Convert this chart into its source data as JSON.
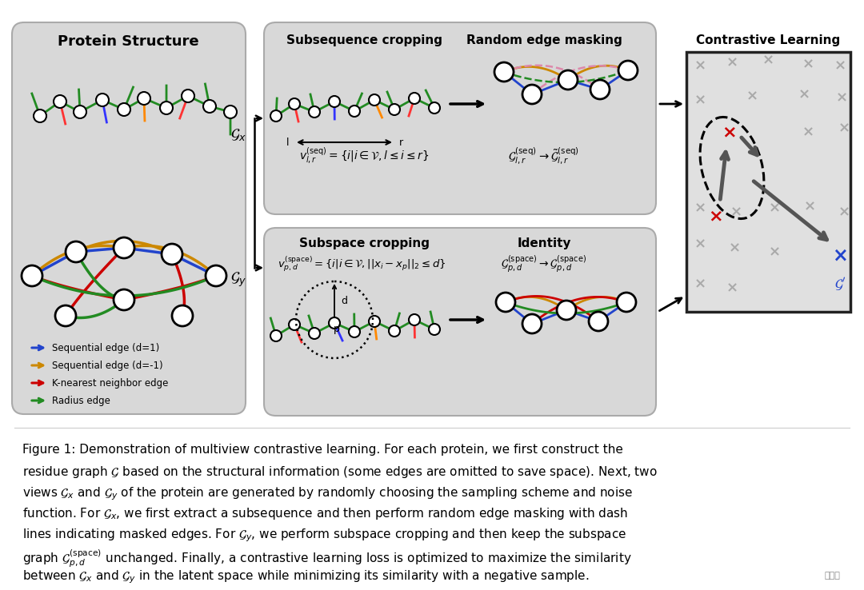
{
  "bg_color": "#ffffff",
  "panel_color": "#d8d8d8",
  "figure_width": 10.8,
  "figure_height": 7.38,
  "dpi": 100,
  "caption_lines": [
    "Figure 1: Demonstration of multiview contrastive learning. For each protein, we first construct the",
    "residue graph $\\mathcal{G}$ based on the structural information (some edges are omitted to save space). Next, two",
    "views $\\mathcal{G}_x$ and $\\mathcal{G}_y$ of the protein are generated by randomly choosing the sampling scheme and noise",
    "function. For $\\mathcal{G}_x$, we first extract a subsequence and then perform random edge masking with dash",
    "lines indicating masked edges. For $\\mathcal{G}_y$, we perform subspace cropping and then keep the subspace",
    "graph $\\mathcal{G}^{\\mathrm{(space)}}_{p,d}$ unchanged. Finally, a contrastive learning loss is optimized to maximize the similarity",
    "between $\\mathcal{G}_x$ and $\\mathcal{G}_y$ in the latent space while minimizing its similarity with a negative sample."
  ]
}
